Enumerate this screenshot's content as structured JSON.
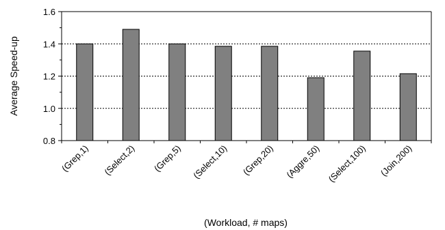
{
  "chart_data": {
    "type": "bar",
    "title": "",
    "xlabel": "(Workload, # maps)",
    "ylabel": "Average Speed-up",
    "categories": [
      "(Grep,1)",
      "(Select,2)",
      "(Grep,5)",
      "(Select,10)",
      "(Grep,20)",
      "(Aggre,50)",
      "(Select,100)",
      "(Join,200)"
    ],
    "values": [
      1.4,
      1.49,
      1.4,
      1.385,
      1.385,
      1.19,
      1.355,
      1.215
    ],
    "ylim": [
      0.8,
      1.6
    ],
    "yticks": [
      "0.8",
      "1.0",
      "1.2",
      "1.4",
      "1.6"
    ],
    "grid": "horizontal dotted",
    "legend": "none",
    "bar_color": "#808080",
    "bar_stroke": "#000000"
  }
}
